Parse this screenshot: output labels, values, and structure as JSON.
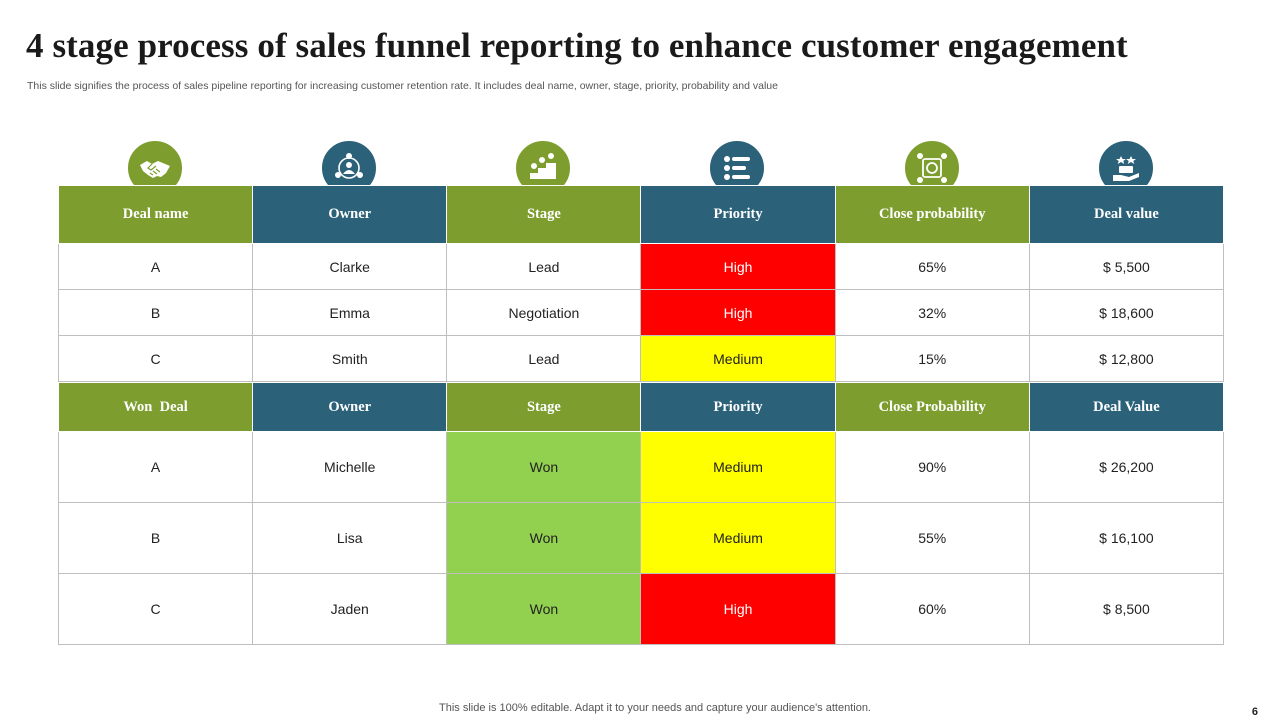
{
  "title": "4 stage process of sales funnel reporting to enhance customer engagement",
  "subtitle": "This slide signifies the process of sales pipeline reporting for increasing customer retention rate. It includes deal name, owner, stage, priority, probability and value",
  "icons": [
    "handshake-icon",
    "owner-network-icon",
    "stage-steps-icon",
    "priority-list-icon",
    "probability-target-icon",
    "deal-value-hand-icon"
  ],
  "colors": {
    "green": "#7d9e2f",
    "blue": "#2b6179",
    "red": "#ff0000",
    "yellow": "#ffff00",
    "lime": "#92d050"
  },
  "table1": {
    "headers": [
      "Deal name",
      "Owner",
      "Stage",
      "Priority",
      "Close probability",
      "Deal value"
    ],
    "rows": [
      [
        "A",
        "Clarke",
        "Lead",
        "High",
        "65%",
        "$ 5,500"
      ],
      [
        "B",
        "Emma",
        "Negotiation",
        "High",
        "32%",
        "$ 18,600"
      ],
      [
        "C",
        "Smith",
        "Lead",
        "Medium",
        "15%",
        "$ 12,800"
      ]
    ]
  },
  "table2": {
    "headers": [
      "Won  Deal",
      "Owner",
      "Stage",
      "Priority",
      "Close Probability",
      "Deal Value"
    ],
    "rows": [
      [
        "A",
        "Michelle",
        "Won",
        "Medium",
        "90%",
        "$ 26,200"
      ],
      [
        "B",
        "Lisa",
        "Won",
        "Medium",
        "55%",
        "$ 16,100"
      ],
      [
        "C",
        "Jaden",
        "Won",
        "High",
        "60%",
        "$ 8,500"
      ]
    ]
  },
  "footer": "This slide is 100% editable. Adapt it to your needs and capture your audience's attention.",
  "page_number": "6"
}
